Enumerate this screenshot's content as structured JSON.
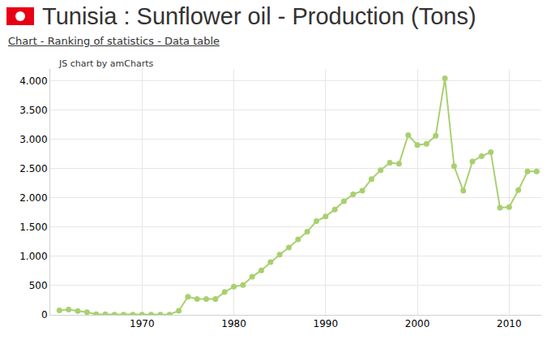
{
  "chart_data": {
    "type": "line",
    "title": "Tunisia : Sunflower oil - Production (Tons)",
    "subtitle": "Chart - Ranking of statistics - Data table",
    "annotations": [
      "JS chart by amCharts"
    ],
    "x": [
      1961,
      1962,
      1963,
      1964,
      1965,
      1966,
      1967,
      1968,
      1969,
      1970,
      1971,
      1972,
      1973,
      1974,
      1975,
      1976,
      1977,
      1978,
      1979,
      1980,
      1981,
      1982,
      1983,
      1984,
      1985,
      1986,
      1987,
      1988,
      1989,
      1990,
      1991,
      1992,
      1993,
      1994,
      1995,
      1996,
      1997,
      1998,
      1999,
      2000,
      2001,
      2002,
      2003,
      2004,
      2005,
      2006,
      2007,
      2008,
      2009,
      2010,
      2011,
      2012,
      2013
    ],
    "values": [
      75,
      90,
      65,
      45,
      10,
      10,
      5,
      5,
      5,
      5,
      5,
      5,
      5,
      70,
      310,
      270,
      270,
      270,
      390,
      480,
      510,
      650,
      760,
      900,
      1030,
      1150,
      1290,
      1420,
      1600,
      1680,
      1800,
      1940,
      2060,
      2120,
      2320,
      2470,
      2600,
      2580,
      3070,
      2900,
      2920,
      3060,
      4040,
      2540,
      2120,
      2620,
      2710,
      2780,
      1830,
      1840,
      2130,
      2450,
      2450
    ],
    "color": "#a9d06f",
    "marker": "circle",
    "line_style": "solid",
    "xlim": [
      1960,
      2013.5
    ],
    "xticks": [
      1970,
      1980,
      1990,
      2000,
      2010
    ],
    "ylim": [
      0,
      4200
    ],
    "yticks": [
      0,
      500,
      {
        "value": 1000,
        "label": "1.000"
      },
      {
        "value": 1500,
        "label": "1.500"
      },
      {
        "value": 2000,
        "label": "2.000"
      },
      {
        "value": 2500,
        "label": "2.500"
      },
      {
        "value": 3000,
        "label": "3.000"
      },
      {
        "value": 3500,
        "label": "3.500"
      },
      {
        "value": 4000,
        "label": "4.000"
      }
    ],
    "grid": true
  }
}
